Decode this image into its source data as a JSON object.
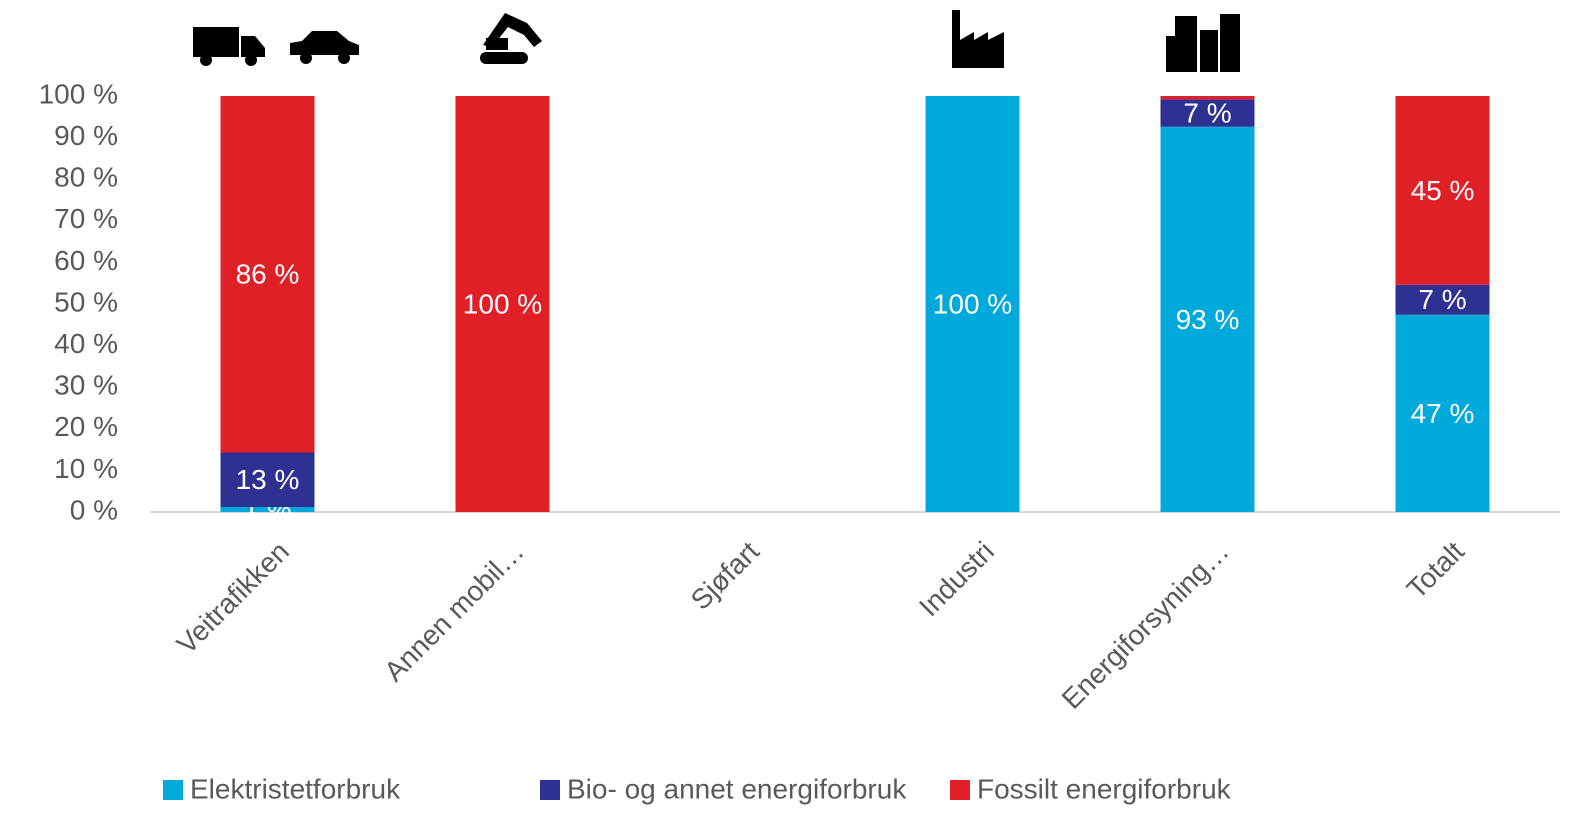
{
  "chart_data": {
    "type": "stacked_bar",
    "categories": [
      "Veitrafikken",
      "Annen mobil…",
      "Sjøfart",
      "Industri",
      "Energiforsyning…",
      "Totalt"
    ],
    "series": [
      {
        "name": "Elektristetforbruk",
        "color": "#00a9dc",
        "values": [
          1.2,
          0,
          null,
          100,
          92.6,
          47.4
        ],
        "value_labels": [
          "1 %",
          null,
          null,
          "100 %",
          "93 %",
          "47 %"
        ]
      },
      {
        "name": "Bio- og annet energiforbruk",
        "color": "#2e3192",
        "values": [
          13.1,
          0,
          null,
          0,
          6.6,
          7.2
        ],
        "value_labels": [
          "13 %",
          null,
          null,
          null,
          "7 %",
          "7 %"
        ]
      },
      {
        "name": "Fossilt energiforbruk",
        "color": "#e01f26",
        "values": [
          85.7,
          100,
          null,
          0,
          0.8,
          45.4
        ],
        "value_labels": [
          "86 %",
          "100 %",
          null,
          null,
          null,
          "45 %"
        ]
      }
    ],
    "ylim": [
      0,
      100
    ],
    "yticks": [
      {
        "value": 0,
        "label": "0 %"
      },
      {
        "value": 10,
        "label": "10 %"
      },
      {
        "value": 20,
        "label": "20 %"
      },
      {
        "value": 30,
        "label": "30 %"
      },
      {
        "value": 40,
        "label": "40 %"
      },
      {
        "value": 50,
        "label": "50 %"
      },
      {
        "value": 60,
        "label": "60 %"
      },
      {
        "value": 70,
        "label": "70 %"
      },
      {
        "value": 80,
        "label": "80 %"
      },
      {
        "value": 90,
        "label": "90 %"
      },
      {
        "value": 100,
        "label": "100 %"
      }
    ],
    "grid": false,
    "legend": "bottom"
  }
}
